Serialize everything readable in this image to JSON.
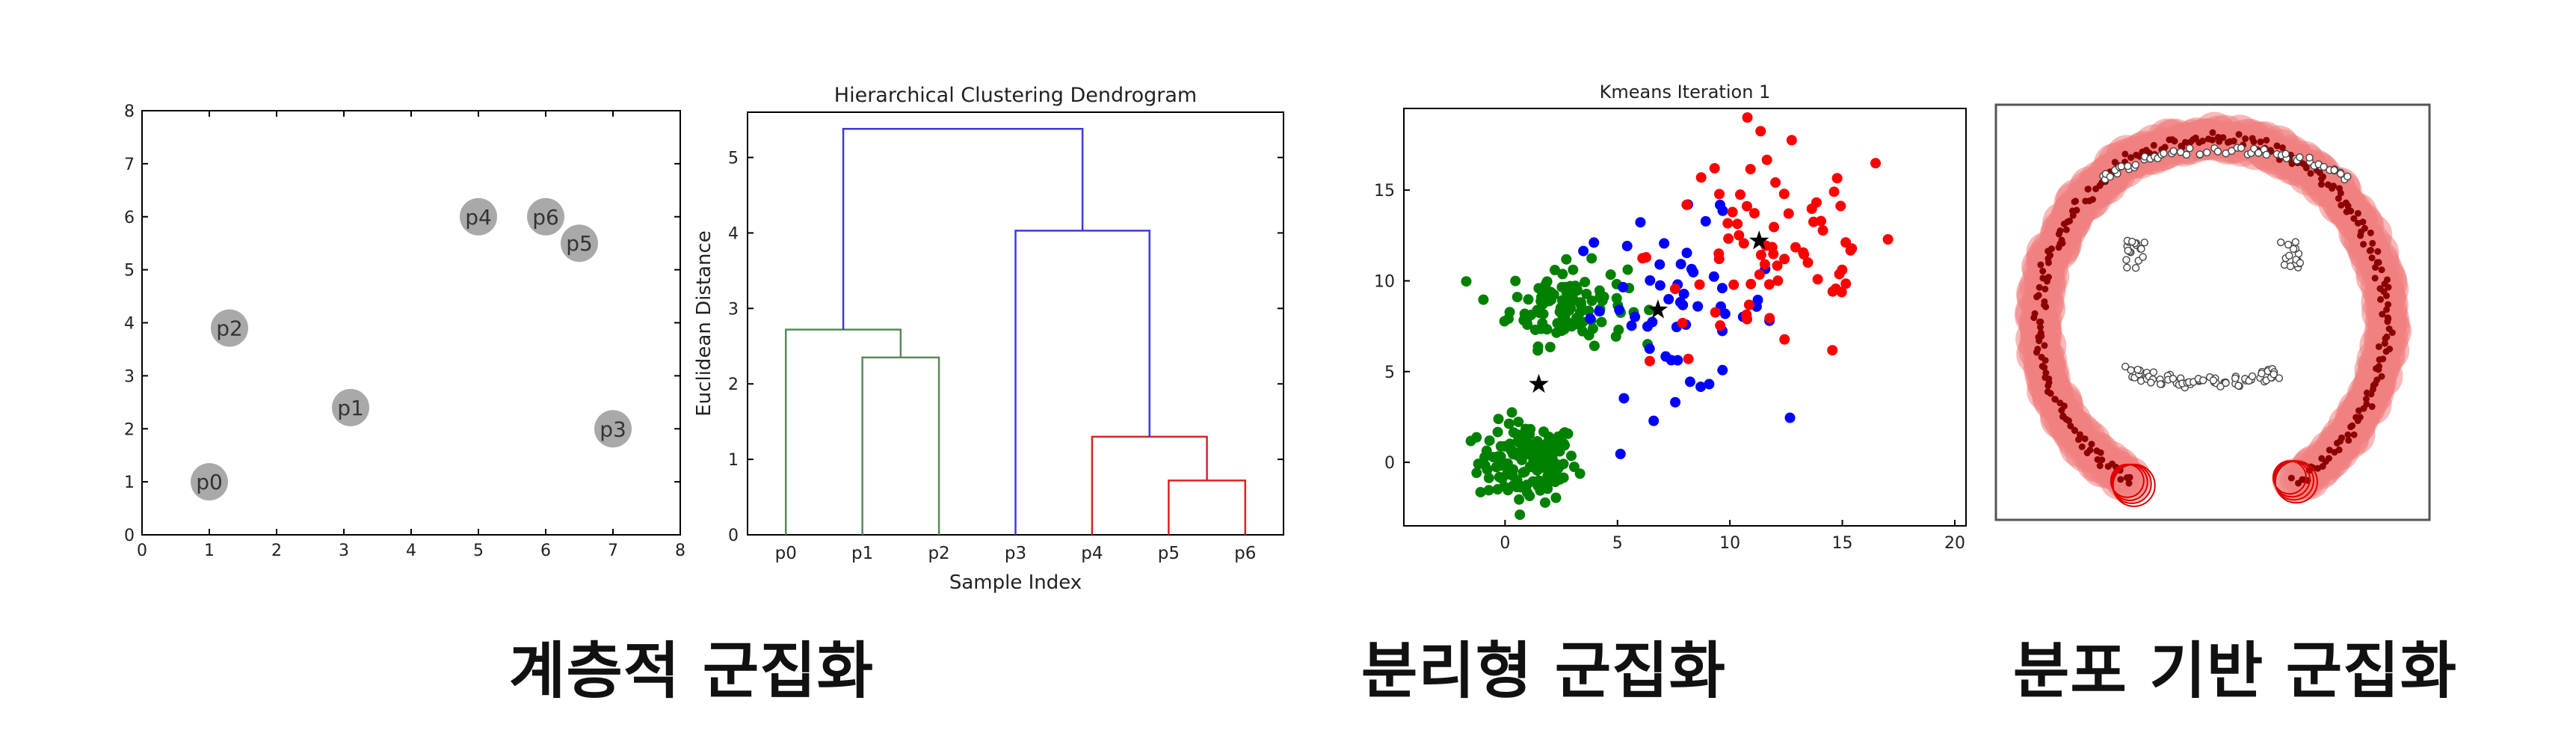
{
  "captions": {
    "hierarchical": "계층적 군집화",
    "partitional": "분리형 군집화",
    "distribution": "분포 기반 군집화"
  },
  "colors": {
    "green": "#008000",
    "blue": "#0000ff",
    "red": "#ff0000",
    "gray_point": "#a9a9a9",
    "dendro_green": "#5a8a5a",
    "dendro_blue": "#3b3bdc",
    "dendro_red": "#e02020",
    "halo": "#f08080",
    "dark_red": "#8b0000"
  },
  "chart_data": [
    {
      "type": "scatter",
      "title": "",
      "xlabel": "",
      "ylabel": "",
      "xlim": [
        0,
        8
      ],
      "ylim": [
        0,
        8
      ],
      "xticks": [
        "0",
        "1",
        "2",
        "3",
        "4",
        "5",
        "6",
        "7",
        "8"
      ],
      "yticks": [
        "0",
        "1",
        "2",
        "3",
        "4",
        "5",
        "6",
        "7",
        "8"
      ],
      "points": [
        {
          "label": "p0",
          "x": 1.0,
          "y": 1.0
        },
        {
          "label": "p1",
          "x": 3.1,
          "y": 2.4
        },
        {
          "label": "p2",
          "x": 1.3,
          "y": 3.9
        },
        {
          "label": "p3",
          "x": 7.0,
          "y": 2.0
        },
        {
          "label": "p4",
          "x": 5.0,
          "y": 6.0
        },
        {
          "label": "p5",
          "x": 6.5,
          "y": 5.5
        },
        {
          "label": "p6",
          "x": 6.0,
          "y": 6.0
        }
      ]
    },
    {
      "type": "dendrogram",
      "title": "Hierarchical Clustering Dendrogram",
      "xlabel": "Sample Index",
      "ylabel": "Euclidean Distance",
      "ylim": [
        0,
        5.6
      ],
      "yticks": [
        "0",
        "1",
        "2",
        "3",
        "4",
        "5"
      ],
      "leaves": [
        "p0",
        "p1",
        "p2",
        "p3",
        "p4",
        "p5",
        "p6"
      ],
      "links": [
        {
          "left": 1,
          "right": 2,
          "height": 2.35,
          "color": "green"
        },
        {
          "left": 0,
          "right": 1.5,
          "height": 2.72,
          "color": "green"
        },
        {
          "left": 5,
          "right": 6,
          "height": 0.72,
          "color": "red"
        },
        {
          "left": 4,
          "right": 5.5,
          "height": 1.3,
          "color": "red"
        },
        {
          "left": 3,
          "right": 4.75,
          "height": 4.03,
          "color": "blue"
        },
        {
          "left": 0.75,
          "right": 3.875,
          "height": 5.38,
          "color": "blue"
        }
      ]
    },
    {
      "type": "scatter",
      "title": "Kmeans Iteration 1",
      "xlabel": "",
      "ylabel": "",
      "xlim": [
        -4.5,
        20.5
      ],
      "ylim": [
        -3.5,
        19.5
      ],
      "xticks": [
        "0",
        "5",
        "10",
        "15",
        "20"
      ],
      "yticks": [
        "0",
        "5",
        "10",
        "15"
      ],
      "series": [
        {
          "cluster": "green",
          "center": [
            1,
            0
          ],
          "spread": [
            1.1,
            1.1
          ],
          "count": 140
        },
        {
          "cluster": "green",
          "center": [
            2.8,
            8.7
          ],
          "spread": [
            1.3,
            1.1
          ],
          "count": 120
        },
        {
          "cluster": "blue",
          "center": [
            7.5,
            8.6
          ],
          "spread": [
            2.3,
            2.4
          ],
          "count": 55
        },
        {
          "cluster": "red",
          "center": [
            12,
            11.5
          ],
          "spread": [
            2.8,
            3.2
          ],
          "count": 75
        }
      ],
      "centroids": [
        [
          1.5,
          4.3
        ],
        [
          6.8,
          8.4
        ],
        [
          11.3,
          12.2
        ]
      ]
    },
    {
      "type": "scatter",
      "title": "",
      "ring": {
        "center": [
          0.5,
          0.52
        ],
        "radius": [
          0.4,
          0.44
        ],
        "count": 260
      },
      "inner_clusters": [
        {
          "name": "left-eye",
          "count": 18
        },
        {
          "name": "right-eye",
          "count": 18
        },
        {
          "name": "top-arc",
          "count": 60
        },
        {
          "name": "mouth",
          "count": 70
        }
      ]
    }
  ]
}
